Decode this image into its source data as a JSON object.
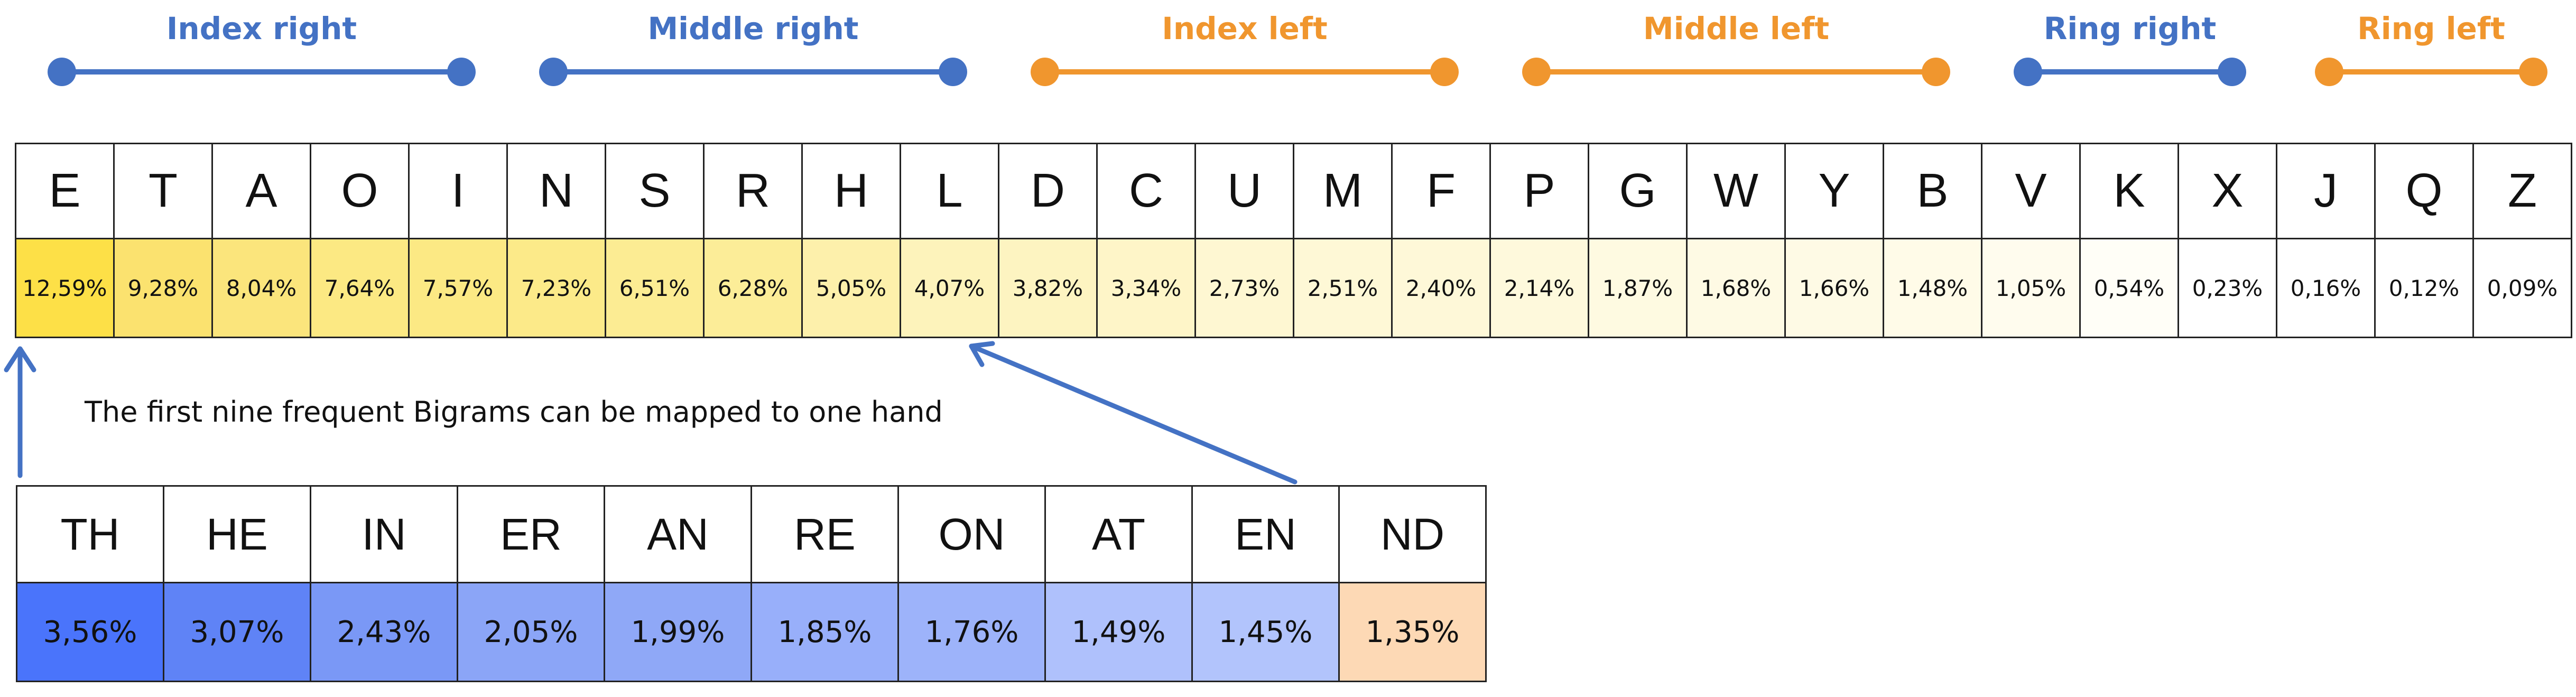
{
  "legend": [
    {
      "label": "Index right",
      "color": "#4472c4"
    },
    {
      "label": "Middle right",
      "color": "#4472c4"
    },
    {
      "label": "Index left",
      "color": "#f0962e"
    },
    {
      "label": "Middle left",
      "color": "#f0962e"
    },
    {
      "label": "Ring right",
      "color": "#4472c4"
    },
    {
      "label": "Ring left",
      "color": "#f0962e"
    }
  ],
  "letters": [
    {
      "letter": "E",
      "freq": "12,59%",
      "color": "#fde047"
    },
    {
      "letter": "T",
      "freq": "9,28%",
      "color": "#fbe26f"
    },
    {
      "letter": "A",
      "freq": "8,04%",
      "color": "#fbe57c"
    },
    {
      "letter": "O",
      "freq": "7,64%",
      "color": "#fce983"
    },
    {
      "letter": "I",
      "freq": "7,57%",
      "color": "#fce984"
    },
    {
      "letter": "N",
      "freq": "7,23%",
      "color": "#fcea89"
    },
    {
      "letter": "S",
      "freq": "6,51%",
      "color": "#fcec93"
    },
    {
      "letter": "R",
      "freq": "6,28%",
      "color": "#fced98"
    },
    {
      "letter": "H",
      "freq": "5,05%",
      "color": "#fdf0ab"
    },
    {
      "letter": "L",
      "freq": "4,07%",
      "color": "#fdf3bb"
    },
    {
      "letter": "D",
      "freq": "3,82%",
      "color": "#fdf4c1"
    },
    {
      "letter": "C",
      "freq": "3,34%",
      "color": "#fef5c8"
    },
    {
      "letter": "U",
      "freq": "2,73%",
      "color": "#fef7d2"
    },
    {
      "letter": "M",
      "freq": "2,51%",
      "color": "#fef8d6"
    },
    {
      "letter": "F",
      "freq": "2,40%",
      "color": "#fef8d8"
    },
    {
      "letter": "P",
      "freq": "2,14%",
      "color": "#fef9dc"
    },
    {
      "letter": "G",
      "freq": "1,87%",
      "color": "#fefae1"
    },
    {
      "letter": "W",
      "freq": "1,68%",
      "color": "#fefae4"
    },
    {
      "letter": "Y",
      "freq": "1,66%",
      "color": "#fefae5"
    },
    {
      "letter": "B",
      "freq": "1,48%",
      "color": "#fffbe8"
    },
    {
      "letter": "V",
      "freq": "1,05%",
      "color": "#fffcee"
    },
    {
      "letter": "K",
      "freq": "0,54%",
      "color": "#fffef7"
    },
    {
      "letter": "X",
      "freq": "0,23%",
      "color": "#ffffff"
    },
    {
      "letter": "J",
      "freq": "0,16%",
      "color": "#ffffff"
    },
    {
      "letter": "Q",
      "freq": "0,12%",
      "color": "#ffffff"
    },
    {
      "letter": "Z",
      "freq": "0,09%",
      "color": "#ffffff"
    }
  ],
  "annotation": "The first nine frequent Bigrams can be mapped to one hand",
  "bigrams": [
    {
      "pair": "TH",
      "freq": "3,56%",
      "color": "#4a74fb"
    },
    {
      "pair": "HE",
      "freq": "3,07%",
      "color": "#5f83f6"
    },
    {
      "pair": "IN",
      "freq": "2,43%",
      "color": "#7a98f6"
    },
    {
      "pair": "ER",
      "freq": "2,05%",
      "color": "#8ba5f7"
    },
    {
      "pair": "AN",
      "freq": "1,99%",
      "color": "#8fa8f7"
    },
    {
      "pair": "RE",
      "freq": "1,85%",
      "color": "#98affa"
    },
    {
      "pair": "ON",
      "freq": "1,76%",
      "color": "#9db3fa"
    },
    {
      "pair": "AT",
      "freq": "1,49%",
      "color": "#afc1fc"
    },
    {
      "pair": "EN",
      "freq": "1,45%",
      "color": "#b2c4fc"
    },
    {
      "pair": "ND",
      "freq": "1,35%",
      "color": "#fdd9b5"
    }
  ],
  "arrow_color": "#4472c4"
}
